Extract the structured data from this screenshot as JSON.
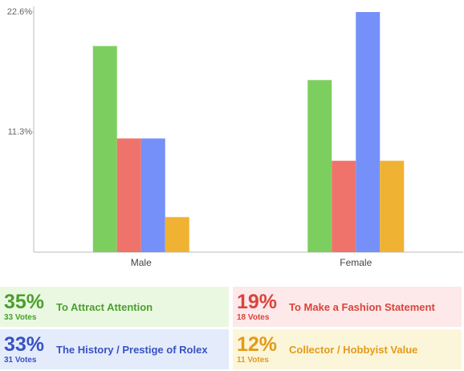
{
  "chart_data": {
    "type": "bar",
    "categories": [
      "Male",
      "Female"
    ],
    "ylim": [
      0,
      22.6
    ],
    "yticks": [
      {
        "value": 22.6,
        "label": "22.6%"
      },
      {
        "value": 11.3,
        "label": "11.3%"
      }
    ],
    "series": [
      {
        "name": "To Attract Attention",
        "color": "#7ccf5f",
        "values": [
          19.4,
          16.2
        ]
      },
      {
        "name": "To Make a Fashion Statement",
        "color": "#ef736b",
        "values": [
          10.7,
          8.6
        ]
      },
      {
        "name": "The History / Prestige of Rolex",
        "color": "#7590f8",
        "values": [
          10.7,
          22.6
        ]
      },
      {
        "name": "Collector / Hobbyist Value",
        "color": "#f0b232",
        "values": [
          3.3,
          8.6
        ]
      }
    ]
  },
  "summary": [
    {
      "percent": "35%",
      "votes": "33 Votes"
    },
    {
      "percent": "19%",
      "votes": "18 Votes"
    },
    {
      "percent": "33%",
      "votes": "31 Votes"
    },
    {
      "percent": "12%",
      "votes": "11 Votes"
    }
  ]
}
